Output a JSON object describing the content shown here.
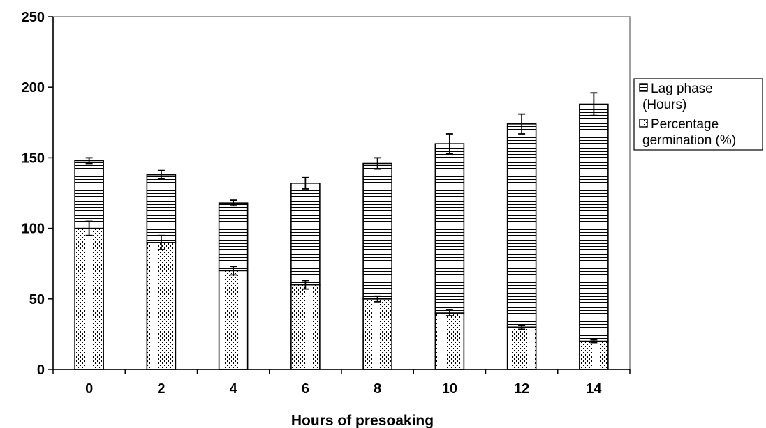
{
  "chart_data": {
    "type": "bar",
    "stacked": true,
    "title": "",
    "xlabel": "Hours of presoaking",
    "ylabel": "",
    "categories": [
      "0",
      "2",
      "4",
      "6",
      "8",
      "10",
      "12",
      "14"
    ],
    "ylim": [
      0,
      250
    ],
    "yticks": [
      "0",
      "50",
      "100",
      "150",
      "200",
      "250"
    ],
    "grid": false,
    "legend_position": "right",
    "series": [
      {
        "name": "Percentage germination (%)",
        "legend_lines": [
          "Percentage",
          "germination (%)"
        ],
        "pattern": "dotted",
        "values": [
          100,
          90,
          70,
          60,
          50,
          40,
          30,
          20
        ],
        "errors": [
          5,
          5,
          3,
          3,
          2,
          2,
          1.5,
          1
        ]
      },
      {
        "name": "Lag phase (Hours)",
        "legend_lines": [
          "Lag phase",
          "(Hours)"
        ],
        "pattern": "horizontal-lines",
        "values": [
          48,
          48,
          48,
          72,
          96,
          120,
          144,
          168
        ],
        "errors": [
          2,
          3,
          2,
          4,
          4,
          7,
          7,
          8
        ]
      }
    ],
    "colors": {
      "bar_fill": "#ffffff",
      "pattern": "#000000",
      "axis": "#000000",
      "plot_border": "#808080"
    }
  }
}
